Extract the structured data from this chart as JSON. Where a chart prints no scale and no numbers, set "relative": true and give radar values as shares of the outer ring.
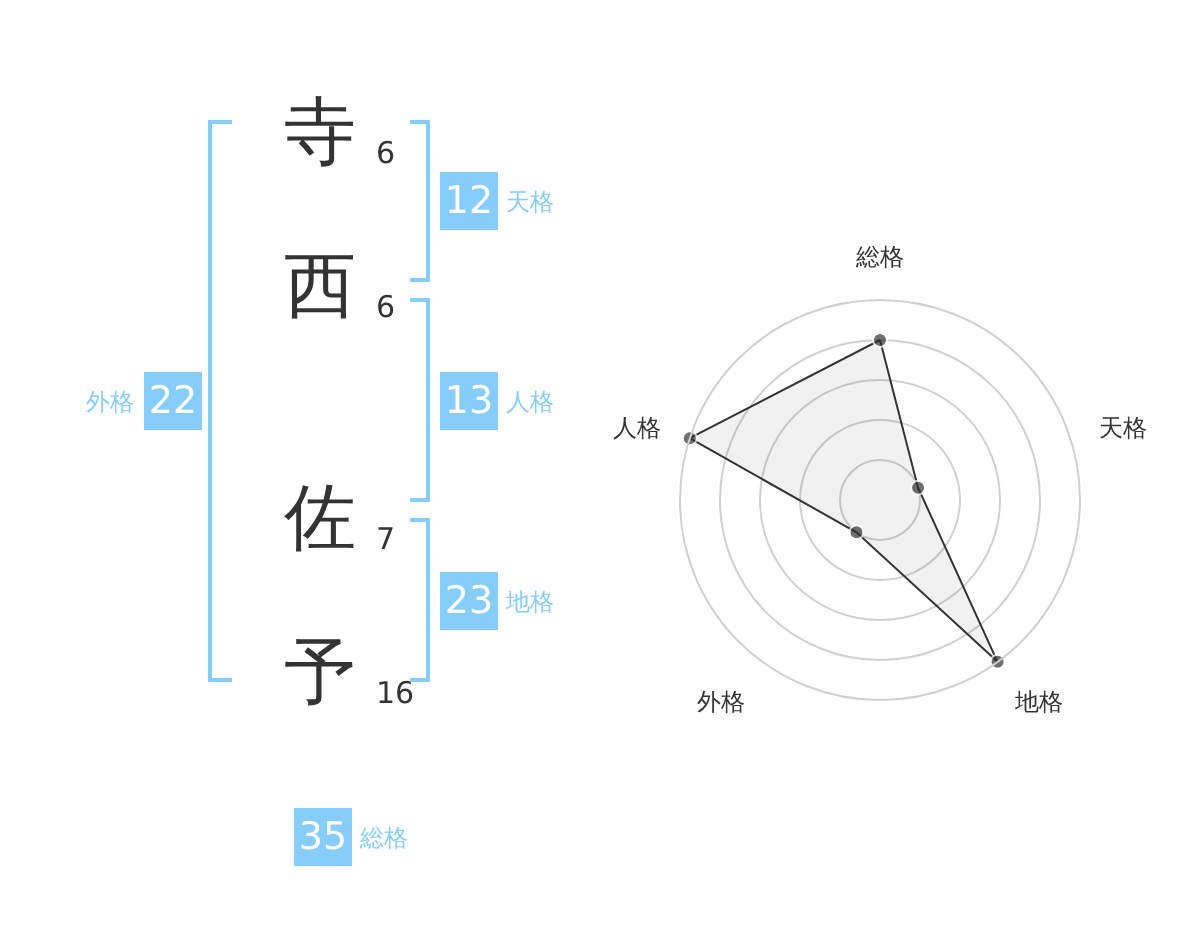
{
  "chart_data": [
    {
      "type": "other",
      "categories": [
        "寺",
        "西",
        "佐",
        "予"
      ],
      "values": [
        6,
        6,
        7,
        16
      ],
      "data_labels": true
    },
    {
      "type": "other",
      "categories": [
        "天格",
        "人格",
        "地格",
        "外格",
        "総格"
      ],
      "values": [
        12,
        13,
        23,
        22,
        35
      ],
      "data_labels": true,
      "color": "#86cdf9"
    },
    {
      "type": "radar",
      "categories": [
        "総格",
        "天格",
        "地格",
        "外格",
        "人格"
      ],
      "relative": true,
      "grid": true,
      "marker": "circle",
      "series": [
        {
          "color": "#333333",
          "values": [
            0.8,
            0.2,
            1,
            0.2,
            1
          ]
        }
      ]
    }
  ]
}
